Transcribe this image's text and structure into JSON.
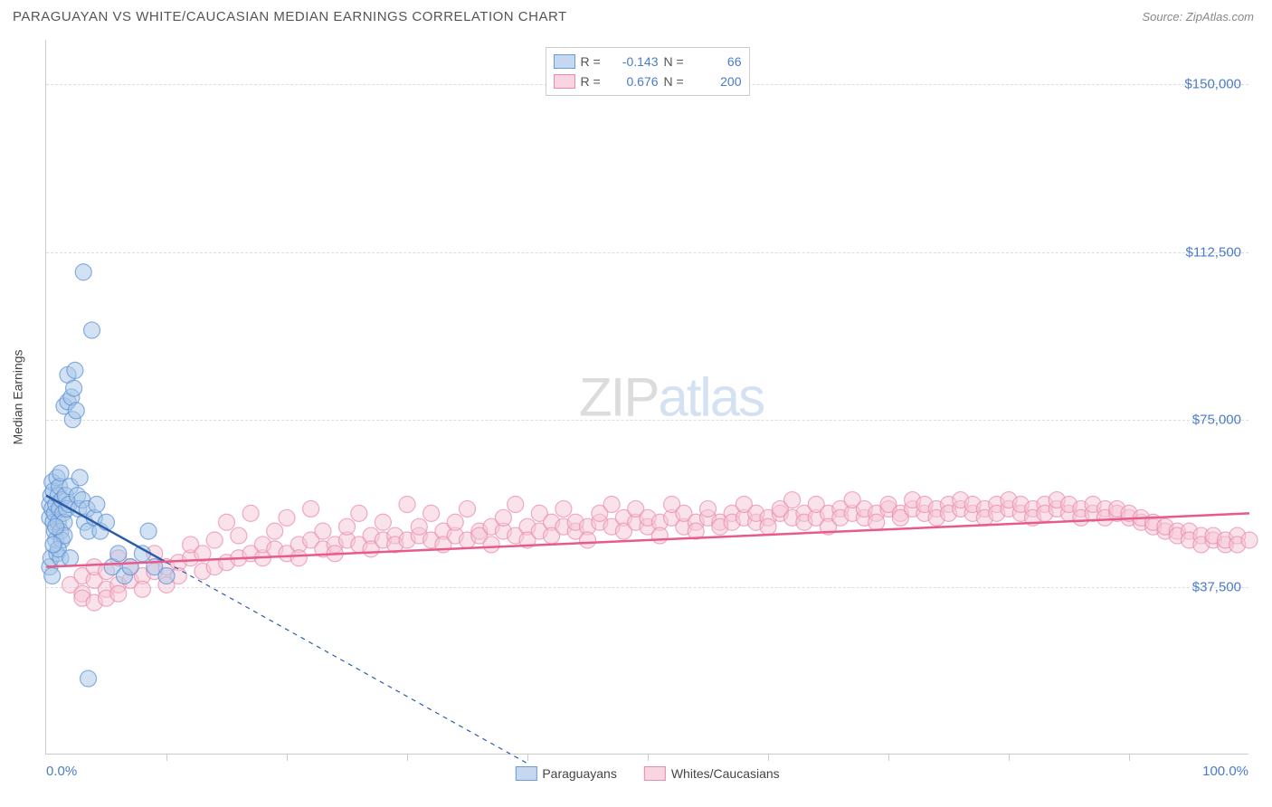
{
  "header": {
    "title": "PARAGUAYAN VS WHITE/CAUCASIAN MEDIAN EARNINGS CORRELATION CHART",
    "source": "Source: ZipAtlas.com"
  },
  "chart": {
    "type": "scatter",
    "y_label": "Median Earnings",
    "xlim": [
      0,
      100
    ],
    "ylim": [
      0,
      160000
    ],
    "y_ticks": [
      {
        "value": 37500,
        "label": "$37,500"
      },
      {
        "value": 75000,
        "label": "$75,000"
      },
      {
        "value": 112500,
        "label": "$112,500"
      },
      {
        "value": 150000,
        "label": "$150,000"
      }
    ],
    "x_ticks": [
      {
        "value": 0,
        "label": "0.0%"
      },
      {
        "value": 100,
        "label": "100.0%"
      }
    ],
    "x_grid_positions": [
      10,
      20,
      30,
      40,
      50,
      60,
      70,
      80,
      90
    ],
    "background_color": "#ffffff",
    "grid_color": "#dddddd",
    "axis_color": "#cccccc",
    "tick_label_color": "#4a7bc8",
    "marker_radius": 9,
    "marker_opacity": 0.5,
    "marker_stroke_width": 1.2,
    "trend_line_width": 2.5,
    "series": [
      {
        "name": "Paraguayans",
        "color_fill": "#a8c5e8",
        "color_stroke": "#5a8fd4",
        "legend_swatch_fill": "#c5d8f0",
        "legend_swatch_border": "#6a9bd8",
        "stat_r": "-0.143",
        "stat_n": "66",
        "trend": {
          "x1": 0,
          "y1": 58000,
          "x2": 10,
          "y2": 43000,
          "dashed_extend_x": 40,
          "dashed_extend_y": -2000
        },
        "points": [
          [
            0.3,
            56000
          ],
          [
            0.3,
            53000
          ],
          [
            0.3,
            42000
          ],
          [
            0.4,
            44000
          ],
          [
            0.4,
            58000
          ],
          [
            0.5,
            55000
          ],
          [
            0.5,
            61000
          ],
          [
            0.5,
            40000
          ],
          [
            0.6,
            52000
          ],
          [
            0.6,
            59000
          ],
          [
            0.7,
            54000
          ],
          [
            0.7,
            50000
          ],
          [
            0.8,
            48000
          ],
          [
            0.8,
            56000
          ],
          [
            0.9,
            62000
          ],
          [
            0.9,
            45000
          ],
          [
            1.0,
            58000
          ],
          [
            1.0,
            52000
          ],
          [
            1.1,
            60000
          ],
          [
            1.1,
            55000
          ],
          [
            1.2,
            50000
          ],
          [
            1.2,
            63000
          ],
          [
            1.3,
            57000
          ],
          [
            1.3,
            48000
          ],
          [
            1.4,
            54000
          ],
          [
            1.5,
            78000
          ],
          [
            1.5,
            52000
          ],
          [
            1.6,
            58000
          ],
          [
            1.7,
            55000
          ],
          [
            1.8,
            79000
          ],
          [
            1.8,
            85000
          ],
          [
            1.9,
            56000
          ],
          [
            2.0,
            60000
          ],
          [
            2.1,
            80000
          ],
          [
            2.2,
            75000
          ],
          [
            2.3,
            82000
          ],
          [
            2.4,
            86000
          ],
          [
            2.5,
            77000
          ],
          [
            2.6,
            58000
          ],
          [
            2.7,
            55000
          ],
          [
            2.8,
            62000
          ],
          [
            3.0,
            57000
          ],
          [
            3.1,
            108000
          ],
          [
            3.2,
            52000
          ],
          [
            3.4,
            55000
          ],
          [
            3.5,
            50000
          ],
          [
            3.8,
            95000
          ],
          [
            4.0,
            53000
          ],
          [
            4.2,
            56000
          ],
          [
            4.5,
            50000
          ],
          [
            5.0,
            52000
          ],
          [
            5.5,
            42000
          ],
          [
            6.0,
            45000
          ],
          [
            6.5,
            40000
          ],
          [
            7.0,
            42000
          ],
          [
            8.0,
            45000
          ],
          [
            8.5,
            50000
          ],
          [
            9.0,
            42000
          ],
          [
            10.0,
            40000
          ],
          [
            3.5,
            17000
          ],
          [
            1.2,
            44000
          ],
          [
            1.0,
            46000
          ],
          [
            1.5,
            49000
          ],
          [
            0.6,
            47000
          ],
          [
            0.8,
            51000
          ],
          [
            2.0,
            44000
          ]
        ]
      },
      {
        "name": "Whites/Caucasians",
        "color_fill": "#f5c5d5",
        "color_stroke": "#e88aa8",
        "legend_swatch_fill": "#f8d5e0",
        "legend_swatch_border": "#e88aa8",
        "stat_r": "0.676",
        "stat_n": "200",
        "trend": {
          "x1": 0,
          "y1": 42000,
          "x2": 100,
          "y2": 54000
        },
        "points": [
          [
            2,
            38000
          ],
          [
            3,
            40000
          ],
          [
            3,
            36000
          ],
          [
            4,
            39000
          ],
          [
            4,
            42000
          ],
          [
            5,
            37000
          ],
          [
            5,
            41000
          ],
          [
            6,
            38000
          ],
          [
            6,
            44000
          ],
          [
            7,
            39000
          ],
          [
            7,
            42000
          ],
          [
            8,
            40000
          ],
          [
            8,
            37000
          ],
          [
            9,
            41000
          ],
          [
            9,
            45000
          ],
          [
            10,
            42000
          ],
          [
            10,
            38000
          ],
          [
            11,
            43000
          ],
          [
            11,
            40000
          ],
          [
            12,
            44000
          ],
          [
            12,
            47000
          ],
          [
            13,
            41000
          ],
          [
            13,
            45000
          ],
          [
            14,
            42000
          ],
          [
            14,
            48000
          ],
          [
            15,
            43000
          ],
          [
            15,
            52000
          ],
          [
            16,
            44000
          ],
          [
            16,
            49000
          ],
          [
            17,
            45000
          ],
          [
            17,
            54000
          ],
          [
            18,
            44000
          ],
          [
            18,
            47000
          ],
          [
            19,
            46000
          ],
          [
            19,
            50000
          ],
          [
            20,
            45000
          ],
          [
            20,
            53000
          ],
          [
            21,
            47000
          ],
          [
            21,
            44000
          ],
          [
            22,
            48000
          ],
          [
            22,
            55000
          ],
          [
            23,
            46000
          ],
          [
            23,
            50000
          ],
          [
            24,
            47000
          ],
          [
            24,
            45000
          ],
          [
            25,
            48000
          ],
          [
            25,
            51000
          ],
          [
            26,
            47000
          ],
          [
            26,
            54000
          ],
          [
            27,
            49000
          ],
          [
            27,
            46000
          ],
          [
            28,
            48000
          ],
          [
            28,
            52000
          ],
          [
            29,
            49000
          ],
          [
            29,
            47000
          ],
          [
            30,
            48000
          ],
          [
            30,
            56000
          ],
          [
            31,
            49000
          ],
          [
            31,
            51000
          ],
          [
            32,
            48000
          ],
          [
            32,
            54000
          ],
          [
            33,
            50000
          ],
          [
            33,
            47000
          ],
          [
            34,
            49000
          ],
          [
            34,
            52000
          ],
          [
            35,
            48000
          ],
          [
            35,
            55000
          ],
          [
            36,
            50000
          ],
          [
            36,
            49000
          ],
          [
            37,
            51000
          ],
          [
            37,
            47000
          ],
          [
            38,
            50000
          ],
          [
            38,
            53000
          ],
          [
            39,
            49000
          ],
          [
            39,
            56000
          ],
          [
            40,
            51000
          ],
          [
            40,
            48000
          ],
          [
            41,
            50000
          ],
          [
            41,
            54000
          ],
          [
            42,
            52000
          ],
          [
            42,
            49000
          ],
          [
            43,
            51000
          ],
          [
            43,
            55000
          ],
          [
            44,
            50000
          ],
          [
            44,
            52000
          ],
          [
            45,
            51000
          ],
          [
            45,
            48000
          ],
          [
            46,
            52000
          ],
          [
            46,
            54000
          ],
          [
            47,
            51000
          ],
          [
            47,
            56000
          ],
          [
            48,
            53000
          ],
          [
            48,
            50000
          ],
          [
            49,
            52000
          ],
          [
            49,
            55000
          ],
          [
            50,
            51000
          ],
          [
            50,
            53000
          ],
          [
            51,
            52000
          ],
          [
            51,
            49000
          ],
          [
            52,
            53000
          ],
          [
            52,
            56000
          ],
          [
            53,
            51000
          ],
          [
            53,
            54000
          ],
          [
            54,
            52000
          ],
          [
            54,
            50000
          ],
          [
            55,
            53000
          ],
          [
            55,
            55000
          ],
          [
            56,
            52000
          ],
          [
            56,
            51000
          ],
          [
            57,
            54000
          ],
          [
            57,
            52000
          ],
          [
            58,
            53000
          ],
          [
            58,
            56000
          ],
          [
            59,
            52000
          ],
          [
            59,
            54000
          ],
          [
            60,
            53000
          ],
          [
            60,
            51000
          ],
          [
            61,
            54000
          ],
          [
            61,
            55000
          ],
          [
            62,
            53000
          ],
          [
            62,
            57000
          ],
          [
            63,
            54000
          ],
          [
            63,
            52000
          ],
          [
            64,
            53000
          ],
          [
            64,
            56000
          ],
          [
            65,
            54000
          ],
          [
            65,
            51000
          ],
          [
            66,
            55000
          ],
          [
            66,
            53000
          ],
          [
            67,
            54000
          ],
          [
            67,
            57000
          ],
          [
            68,
            53000
          ],
          [
            68,
            55000
          ],
          [
            69,
            54000
          ],
          [
            69,
            52000
          ],
          [
            70,
            55000
          ],
          [
            70,
            56000
          ],
          [
            71,
            54000
          ],
          [
            71,
            53000
          ],
          [
            72,
            55000
          ],
          [
            72,
            57000
          ],
          [
            73,
            54000
          ],
          [
            73,
            56000
          ],
          [
            74,
            55000
          ],
          [
            74,
            53000
          ],
          [
            75,
            56000
          ],
          [
            75,
            54000
          ],
          [
            76,
            55000
          ],
          [
            76,
            57000
          ],
          [
            77,
            54000
          ],
          [
            77,
            56000
          ],
          [
            78,
            55000
          ],
          [
            78,
            53000
          ],
          [
            79,
            56000
          ],
          [
            79,
            54000
          ],
          [
            80,
            55000
          ],
          [
            80,
            57000
          ],
          [
            81,
            54000
          ],
          [
            81,
            56000
          ],
          [
            82,
            55000
          ],
          [
            82,
            53000
          ],
          [
            83,
            56000
          ],
          [
            83,
            54000
          ],
          [
            84,
            55000
          ],
          [
            84,
            57000
          ],
          [
            85,
            54000
          ],
          [
            85,
            56000
          ],
          [
            86,
            55000
          ],
          [
            86,
            53000
          ],
          [
            87,
            54000
          ],
          [
            87,
            56000
          ],
          [
            88,
            55000
          ],
          [
            88,
            53000
          ],
          [
            89,
            54000
          ],
          [
            89,
            55000
          ],
          [
            90,
            53000
          ],
          [
            90,
            54000
          ],
          [
            91,
            52000
          ],
          [
            91,
            53000
          ],
          [
            92,
            51000
          ],
          [
            92,
            52000
          ],
          [
            93,
            50000
          ],
          [
            93,
            51000
          ],
          [
            94,
            50000
          ],
          [
            94,
            49000
          ],
          [
            95,
            50000
          ],
          [
            95,
            48000
          ],
          [
            96,
            49000
          ],
          [
            96,
            47000
          ],
          [
            97,
            48000
          ],
          [
            97,
            49000
          ],
          [
            98,
            47000
          ],
          [
            98,
            48000
          ],
          [
            99,
            49000
          ],
          [
            99,
            47000
          ],
          [
            100,
            48000
          ],
          [
            3,
            35000
          ],
          [
            4,
            34000
          ],
          [
            5,
            35000
          ],
          [
            6,
            36000
          ]
        ]
      }
    ],
    "watermark": {
      "zip": "ZIP",
      "atlas": "atlas"
    }
  }
}
